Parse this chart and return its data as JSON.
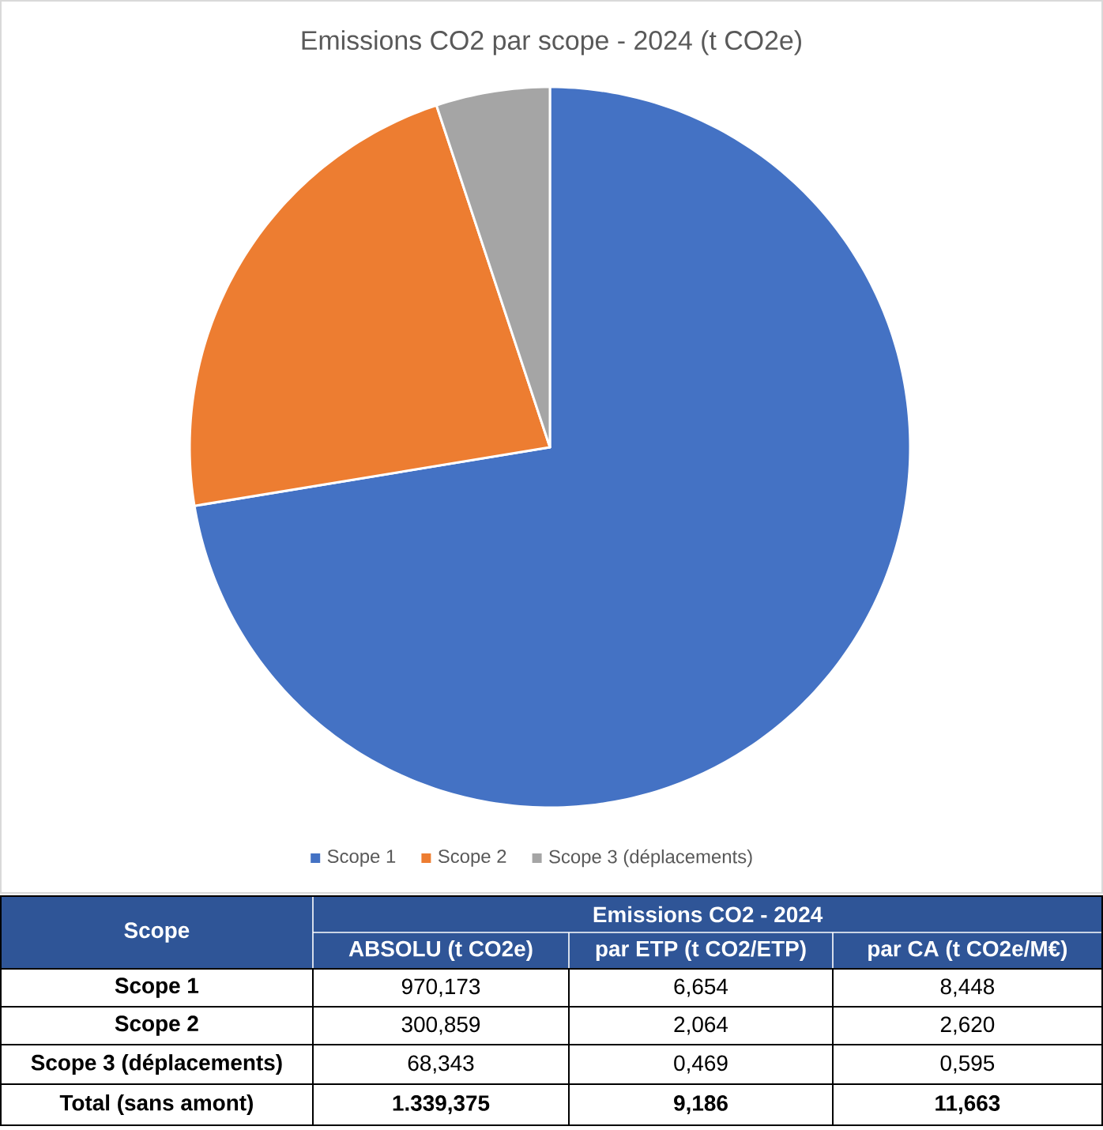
{
  "chart_data": [
    {
      "type": "pie",
      "title": "Emissions CO2 par scope - 2024 (t CO2e)",
      "categories": [
        "Scope 1",
        "Scope 2",
        "Scope 3 (déplacements)"
      ],
      "values": [
        72.4,
        22.5,
        5.1
      ],
      "colors": [
        "#4472c4",
        "#ed7d31",
        "#a5a5a5"
      ],
      "legend": "bottom"
    },
    {
      "type": "other",
      "title": "Emissions CO2 - 2024",
      "categories": [
        "Scope",
        "Scope 1",
        "Scope 2",
        "Scope 3 (déplacements)",
        "Total (sans amont)"
      ],
      "annotations": [
        "ABSOLU (t CO2e)",
        "par ETP (t CO2/ETP)",
        "par CA (t CO2e/M€)",
        "970,173",
        "6,654",
        "8,448",
        "300,859",
        "2,064",
        "2,620",
        "68,343",
        "0,469",
        "0,595",
        "1.339,375",
        "9,186",
        "11,663"
      ]
    }
  ]
}
